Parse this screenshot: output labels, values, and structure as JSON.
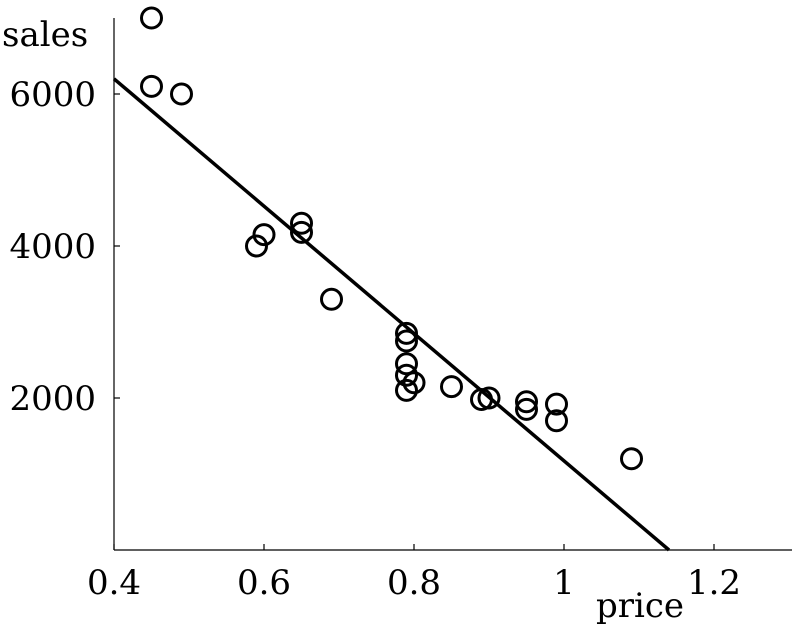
{
  "chart_data": {
    "type": "scatter",
    "title": "",
    "xlabel": "price",
    "ylabel": "sales",
    "xlim": [
      0.4,
      1.3
    ],
    "ylim": [
      0,
      7000
    ],
    "x_ticks": [
      0.4,
      0.6,
      0.8,
      1,
      1.2
    ],
    "x_tick_labels": [
      "0.4",
      "0.6",
      "0.8",
      "1",
      "1.2"
    ],
    "y_ticks": [
      2000,
      4000,
      6000
    ],
    "y_tick_labels": [
      "2000",
      "4000",
      "6000"
    ],
    "grid": false,
    "legend": "none",
    "points": [
      {
        "x": 0.45,
        "y": 7000
      },
      {
        "x": 0.45,
        "y": 6100
      },
      {
        "x": 0.49,
        "y": 6000
      },
      {
        "x": 0.59,
        "y": 4000
      },
      {
        "x": 0.6,
        "y": 4150
      },
      {
        "x": 0.65,
        "y": 4300
      },
      {
        "x": 0.65,
        "y": 4180
      },
      {
        "x": 0.69,
        "y": 3300
      },
      {
        "x": 0.79,
        "y": 2850
      },
      {
        "x": 0.79,
        "y": 2750
      },
      {
        "x": 0.79,
        "y": 2450
      },
      {
        "x": 0.79,
        "y": 2300
      },
      {
        "x": 0.8,
        "y": 2200
      },
      {
        "x": 0.79,
        "y": 2100
      },
      {
        "x": 0.85,
        "y": 2150
      },
      {
        "x": 0.89,
        "y": 1980
      },
      {
        "x": 0.9,
        "y": 2000
      },
      {
        "x": 0.95,
        "y": 1950
      },
      {
        "x": 0.95,
        "y": 1850
      },
      {
        "x": 0.99,
        "y": 1920
      },
      {
        "x": 0.99,
        "y": 1700
      },
      {
        "x": 1.09,
        "y": 1200
      }
    ],
    "fit_line": {
      "x": [
        0.4,
        1.14
      ],
      "y": [
        6200,
        0
      ]
    }
  }
}
